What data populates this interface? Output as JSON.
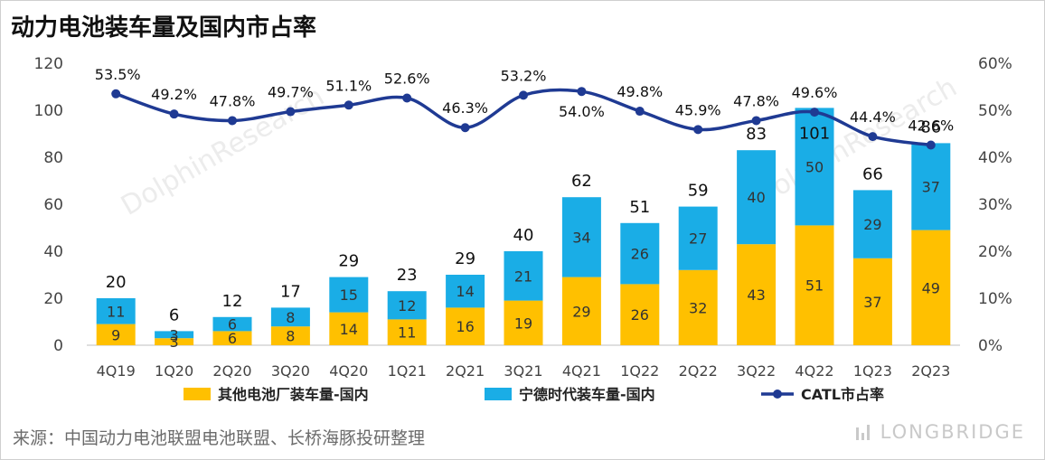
{
  "title": "动力电池装车量及国内市占率",
  "source": "来源：中国动力电池联盟电池联盟、长桥海豚投研整理",
  "brand": "LONGBRIDGE",
  "watermark": "DolphinResearch",
  "colors": {
    "other": "#FFC000",
    "catl": "#1AADE6",
    "share": "#1F3A93"
  },
  "chart_data": {
    "type": "bar",
    "stacked": true,
    "categories": [
      "4Q19",
      "1Q20",
      "2Q20",
      "3Q20",
      "4Q20",
      "1Q21",
      "2Q21",
      "3Q21",
      "4Q21",
      "1Q22",
      "2Q22",
      "3Q22",
      "4Q22",
      "1Q23",
      "2Q23"
    ],
    "series": [
      {
        "name": "其他电池厂装车量-国内",
        "values": [
          9,
          3,
          6,
          8,
          14,
          11,
          16,
          19,
          29,
          26,
          32,
          43,
          51,
          37,
          49
        ]
      },
      {
        "name": "宁德时代装车量-国内",
        "values": [
          11,
          3,
          6,
          8,
          15,
          12,
          14,
          21,
          34,
          26,
          27,
          40,
          50,
          29,
          37
        ]
      }
    ],
    "totals": [
      20,
      6,
      12,
      17,
      29,
      23,
      29,
      40,
      62,
      51,
      59,
      83,
      101,
      66,
      86
    ],
    "line": {
      "name": "CATL市占率",
      "axis": "right",
      "values": [
        53.5,
        49.2,
        47.8,
        49.7,
        51.1,
        52.6,
        46.3,
        53.2,
        54.0,
        49.8,
        45.9,
        47.8,
        49.6,
        44.4,
        42.6
      ],
      "labels": [
        "53.5%",
        "49.2%",
        "47.8%",
        "49.7%",
        "51.1%",
        "52.6%",
        "46.3%",
        "53.2%",
        "54.0%",
        "49.8%",
        "45.9%",
        "47.8%",
        "49.6%",
        "44.4%",
        "42.6%"
      ]
    },
    "ylim": [
      0,
      120
    ],
    "yticks": [
      0,
      20,
      40,
      60,
      80,
      100,
      120
    ],
    "y2lim": [
      0,
      60
    ],
    "y2ticks": [
      "0%",
      "10%",
      "20%",
      "30%",
      "40%",
      "50%",
      "60%"
    ],
    "legend_position": "bottom",
    "grid": false
  }
}
